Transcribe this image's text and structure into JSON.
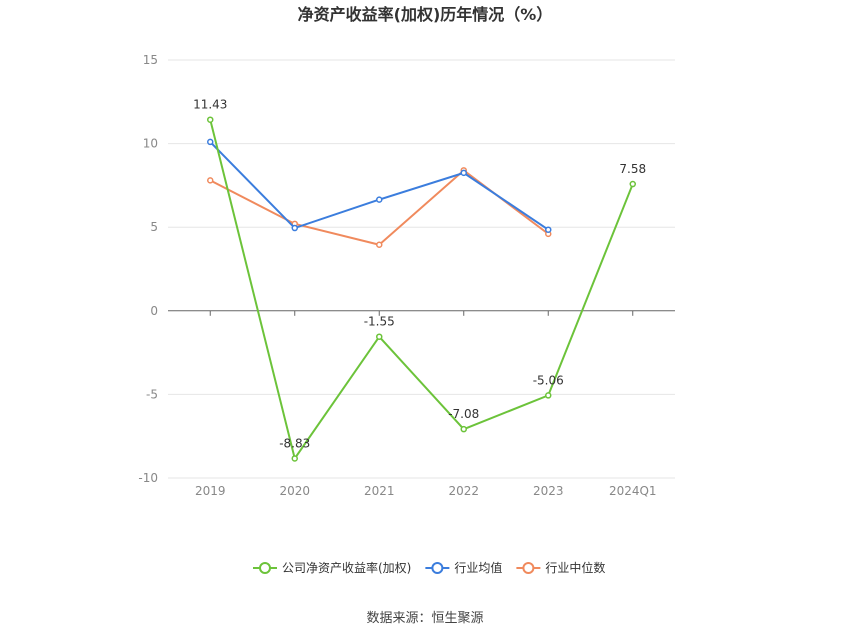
{
  "chart_data": {
    "type": "line",
    "title": "净资产收益率(加权)历年情况（%）",
    "categories": [
      "2019",
      "2020",
      "2021",
      "2022",
      "2023",
      "2024Q1"
    ],
    "ylim": [
      -10,
      15
    ],
    "yticks": [
      "15",
      "10",
      "5",
      "0",
      "-5",
      "-10"
    ],
    "grid": true,
    "legend_position": "bottom",
    "series": [
      {
        "name": "公司净资产收益率(加权)",
        "color": "#6cc33a",
        "values": [
          11.43,
          -8.83,
          -1.55,
          -7.08,
          -5.06,
          7.58
        ],
        "labels": [
          "11.43",
          "-8.83",
          "-1.55",
          "-7.08",
          "-5.06",
          "7.58"
        ]
      },
      {
        "name": "行业均值",
        "color": "#3b7ddd",
        "values": [
          10.1,
          4.95,
          6.65,
          8.25,
          4.85,
          null
        ]
      },
      {
        "name": "行业中位数",
        "color": "#f08a5d",
        "values": [
          7.8,
          5.2,
          3.95,
          8.4,
          4.6,
          null
        ]
      }
    ]
  },
  "source_text": "数据来源：恒生聚源"
}
